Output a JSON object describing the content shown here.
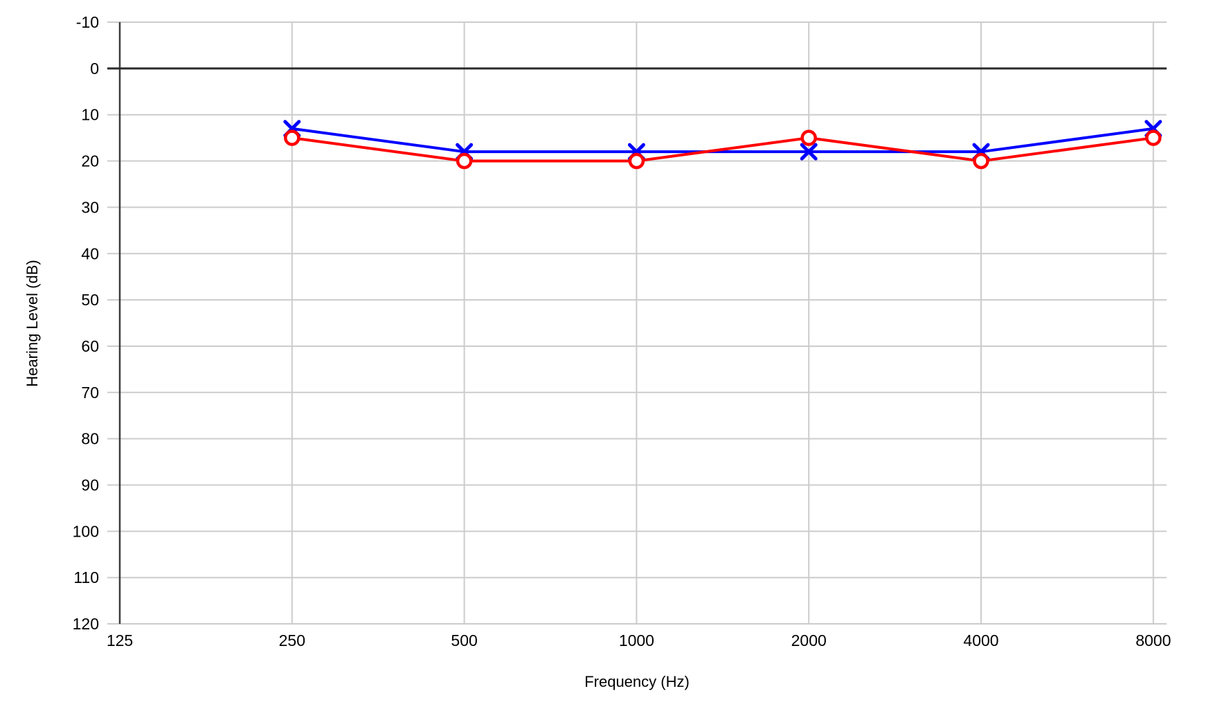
{
  "chart_data": {
    "type": "line",
    "title": "",
    "xlabel": "Frequency (Hz)",
    "ylabel": "Hearing Level (dB)",
    "x_scale": "log2_octaves",
    "x_ticks_hz": [
      125,
      250,
      500,
      1000,
      2000,
      4000,
      8000
    ],
    "x_tick_labels": [
      "125",
      "250",
      "500",
      "1000",
      "2000",
      "4000",
      "8000"
    ],
    "y_ticks_db": [
      -10,
      0,
      10,
      20,
      30,
      40,
      50,
      60,
      70,
      80,
      90,
      100,
      110,
      120
    ],
    "y_tick_labels": [
      "-10",
      "0",
      "10",
      "20",
      "30",
      "40",
      "50",
      "60",
      "70",
      "80",
      "90",
      "100",
      "110",
      "120"
    ],
    "ylim": [
      -10,
      120
    ],
    "y_axis_inverted": true,
    "grid": true,
    "legend_position": "none",
    "emphasis": {
      "zero_db_line": true,
      "left_axis_line_at_125hz": true
    },
    "series": [
      {
        "name": "blue-x-series",
        "marker": "x",
        "color": "#0000ff",
        "x_hz": [
          250,
          500,
          1000,
          2000,
          4000,
          8000
        ],
        "values_db": [
          13,
          18,
          18,
          18,
          18,
          13
        ]
      },
      {
        "name": "red-circle-series",
        "marker": "open-circle",
        "color": "#ff0000",
        "x_hz": [
          250,
          500,
          1000,
          2000,
          4000,
          8000
        ],
        "values_db": [
          15,
          20,
          20,
          15,
          20,
          15
        ]
      }
    ],
    "colors": {
      "background": "#ffffff",
      "gridline": "#cccccc",
      "zero_line": "#2b2b2b",
      "axis_line": "#3c3c3c",
      "tick_label": "#000000",
      "axis_title": "#000000"
    }
  }
}
